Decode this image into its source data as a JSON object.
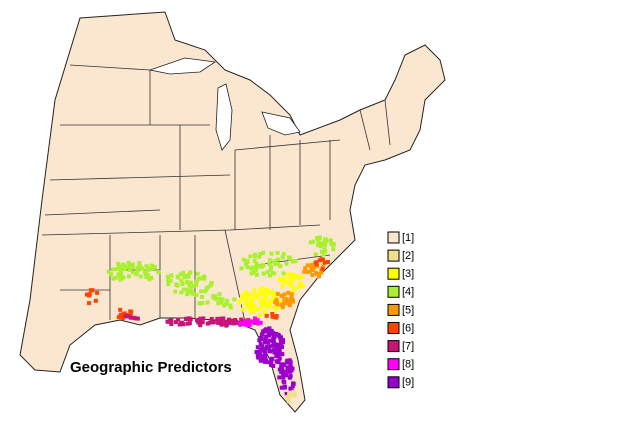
{
  "title": "Geographic Predictors",
  "legend": [
    {
      "label": "[1]",
      "color": "#fbe6d0"
    },
    {
      "label": "[2]",
      "color": "#f0e08c"
    },
    {
      "label": "[3]",
      "color": "#ffff00"
    },
    {
      "label": "[4]",
      "color": "#a8f030"
    },
    {
      "label": "[5]",
      "color": "#ff9900"
    },
    {
      "label": "[6]",
      "color": "#ff4400"
    },
    {
      "label": "[7]",
      "color": "#c81478"
    },
    {
      "label": "[8]",
      "color": "#ff00ff"
    },
    {
      "label": "[9]",
      "color": "#9900cc"
    }
  ]
}
